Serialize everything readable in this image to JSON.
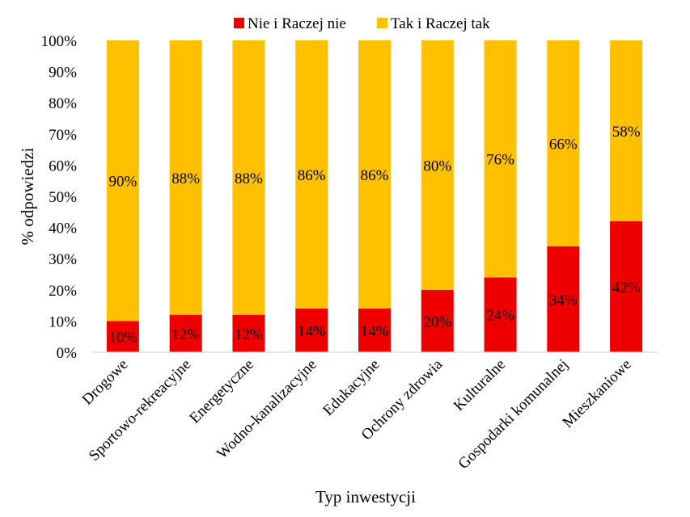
{
  "chart_data": {
    "type": "bar",
    "stacked": true,
    "percent": true,
    "categories": [
      "Drogowe",
      "Sportowo-rekreacyjne",
      "Energetyczne",
      "Wodno-kanalizacyjne",
      "Edukacyjne",
      "Ochrony zdrowia",
      "Kulturalne",
      "Gospodarki komunalnej",
      "Mieszkaniowe"
    ],
    "series": [
      {
        "name": "Nie i Raczej nie",
        "color": "#ee0000",
        "values": [
          10,
          12,
          12,
          14,
          14,
          20,
          24,
          34,
          42
        ],
        "labels": [
          "10%",
          "12%",
          "12%",
          "14%",
          "14%",
          "20%",
          "24%",
          "34%",
          "42%"
        ]
      },
      {
        "name": "Tak i Raczej tak",
        "color": "#ffc000",
        "values": [
          90,
          88,
          88,
          86,
          86,
          80,
          76,
          66,
          58
        ],
        "labels": [
          "90%",
          "88%",
          "88%",
          "86%",
          "86%",
          "80%",
          "76%",
          "66%",
          "58%"
        ]
      }
    ],
    "yticks": [
      "0%",
      "10%",
      "20%",
      "30%",
      "40%",
      "50%",
      "60%",
      "70%",
      "80%",
      "90%",
      "100%"
    ],
    "ylim": [
      0,
      100
    ],
    "xlabel": "Typ inwestycji",
    "ylabel": "% odpowiedzi",
    "legend_position": "top",
    "grid": false
  }
}
